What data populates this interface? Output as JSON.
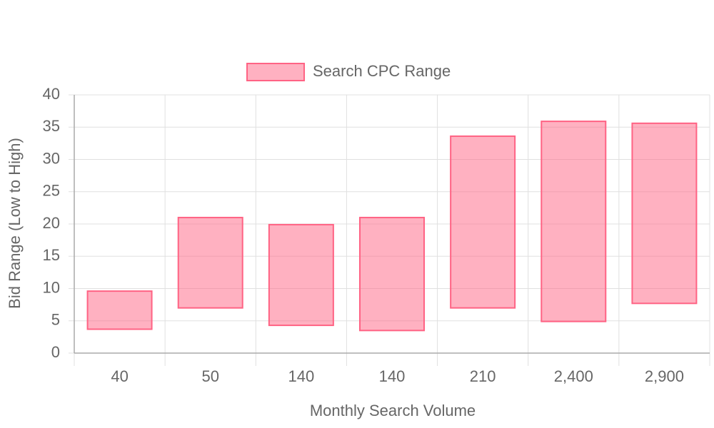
{
  "chart_data": {
    "type": "floating-bar",
    "x_label": "Monthly Search Volume",
    "y_label": "Bid Range (Low to High)",
    "categories": [
      "40",
      "50",
      "140",
      "140",
      "210",
      "2,400",
      "2,900"
    ],
    "series": [
      {
        "name": "Search CPC Range",
        "color": "#ff6384",
        "low": [
          3.7,
          7,
          4.3,
          3.5,
          7,
          4.9,
          7.7
        ],
        "high": [
          9.6,
          21,
          19.9,
          21,
          33.6,
          35.9,
          35.6
        ]
      }
    ],
    "ylim": [
      0,
      40
    ],
    "yticks": [
      0,
      5,
      10,
      15,
      20,
      25,
      30,
      35,
      40
    ],
    "grid": true,
    "legend": "top"
  }
}
